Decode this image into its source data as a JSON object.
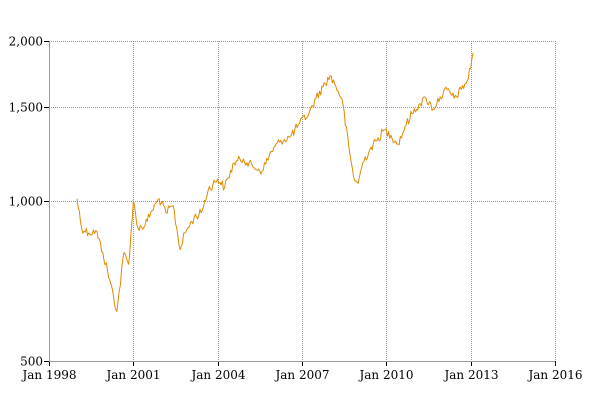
{
  "chart_data": {
    "type": "line",
    "title": "",
    "xlabel": "",
    "ylabel": "",
    "y_scale": "log",
    "ylim": [
      500,
      2000
    ],
    "xlim": [
      "1998-01-01",
      "2016-01-01"
    ],
    "grid": true,
    "legend": "none",
    "x_ticks": [
      {
        "date": "1998-01-01",
        "label": "Jan 1998"
      },
      {
        "date": "2001-01-01",
        "label": "Jan 2001"
      },
      {
        "date": "2004-01-01",
        "label": "Jan 2004"
      },
      {
        "date": "2007-01-01",
        "label": "Jan 2007"
      },
      {
        "date": "2010-01-01",
        "label": "Jan 2010"
      },
      {
        "date": "2013-01-01",
        "label": "Jan 2013"
      },
      {
        "date": "2016-01-01",
        "label": "Jan 2016"
      }
    ],
    "y_ticks": [
      {
        "value": 500,
        "label": "500"
      },
      {
        "value": 1000,
        "label": "1,000"
      },
      {
        "value": 1500,
        "label": "1,500"
      },
      {
        "value": 2000,
        "label": "2,000"
      }
    ],
    "series": [
      {
        "color": "#e08a00",
        "x": [
          "1999-01",
          "1999-03",
          "1999-06",
          "1999-09",
          "1999-12",
          "2000-03",
          "2000-06",
          "2000-09",
          "2000-11",
          "2001-01",
          "2001-03",
          "2001-06",
          "2001-09",
          "2001-12",
          "2002-03",
          "2002-06",
          "2002-09",
          "2002-11",
          "2003-03",
          "2003-06",
          "2003-09",
          "2004-01",
          "2004-04",
          "2004-08",
          "2004-12",
          "2005-04",
          "2005-08",
          "2005-12",
          "2006-04",
          "2006-08",
          "2006-12",
          "2007-04",
          "2007-07",
          "2007-10",
          "2008-01",
          "2008-03",
          "2008-06",
          "2008-09",
          "2008-11",
          "2009-01",
          "2009-03",
          "2009-06",
          "2009-09",
          "2009-12",
          "2010-03",
          "2010-06",
          "2010-09",
          "2010-12",
          "2011-03",
          "2011-06",
          "2011-09",
          "2011-12",
          "2012-03",
          "2012-06",
          "2012-09",
          "2012-12",
          "2013-02"
        ],
        "y": [
          1010,
          890,
          870,
          880,
          800,
          710,
          620,
          800,
          760,
          1000,
          890,
          900,
          960,
          1010,
          950,
          980,
          810,
          870,
          930,
          950,
          1050,
          1100,
          1060,
          1180,
          1200,
          1160,
          1140,
          1240,
          1300,
          1320,
          1400,
          1460,
          1560,
          1640,
          1720,
          1660,
          1560,
          1260,
          1110,
          1080,
          1180,
          1250,
          1300,
          1360,
          1330,
          1280,
          1380,
          1460,
          1520,
          1560,
          1490,
          1570,
          1620,
          1560,
          1620,
          1700,
          1900
        ]
      }
    ]
  }
}
